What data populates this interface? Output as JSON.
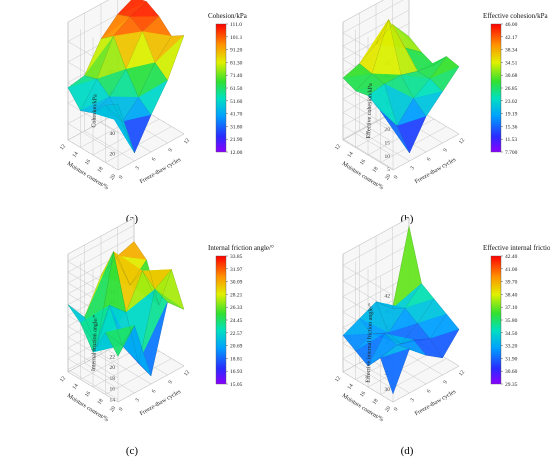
{
  "chart_data": [
    {
      "type": "surface",
      "panel": "(a)",
      "colorbar_title": "Cohesion/kPa",
      "zlabel": "Cohesion/kPa",
      "xlabel": "Moisture content/%",
      "ylabel": "Freeze-thaw cycles",
      "colorbar_ticks": [
        "111.0",
        "101.1",
        "91.20",
        "81.30",
        "71.40",
        "61.50",
        "51.60",
        "41.70",
        "31.80",
        "21.90",
        "12.00"
      ],
      "z_ticks": [
        "20",
        "40",
        "60",
        "80",
        "100"
      ],
      "x_ticks": [
        "12",
        "14",
        "16",
        "18",
        "20"
      ],
      "y_ticks": [
        "0",
        "3",
        "6",
        "9",
        "12"
      ],
      "zlim": [
        12,
        111
      ],
      "grid": [
        [
          55,
          58,
          85,
          100,
          108
        ],
        [
          40,
          62,
          95,
          105,
          111
        ],
        [
          45,
          52,
          70,
          98,
          104
        ],
        [
          60,
          35,
          50,
          75,
          92
        ],
        [
          68,
          12,
          40,
          65,
          100
        ]
      ]
    },
    {
      "type": "surface",
      "panel": "(b)",
      "colorbar_title": "Effective  cohesion/kPa",
      "zlabel": "Effective  cohesion/kPa",
      "xlabel": "Moisture content/%",
      "ylabel": "Freeze-thaw cycles",
      "colorbar_ticks": [
        "46.00",
        "42.17",
        "38.34",
        "34.51",
        "30.68",
        "26.85",
        "23.02",
        "19.19",
        "15.36",
        "11.53",
        "7.700"
      ],
      "z_ticks": [
        "5",
        "10",
        "15",
        "20",
        "25",
        "30",
        "35",
        "40",
        "45"
      ],
      "x_ticks": [
        "12",
        "14",
        "16",
        "18",
        "20"
      ],
      "y_ticks": [
        "0",
        "3",
        "6",
        "9",
        "12"
      ],
      "zlim": [
        7.7,
        46
      ],
      "grid": [
        [
          28,
          30,
          34,
          38,
          30
        ],
        [
          26,
          29,
          46,
          32,
          27
        ],
        [
          27,
          28,
          28,
          26,
          25
        ],
        [
          24,
          15,
          22,
          26,
          31
        ],
        [
          20,
          7.7,
          18,
          24,
          30
        ]
      ]
    },
    {
      "type": "surface",
      "panel": "(c)",
      "colorbar_title": "Internal friction angle/°",
      "zlabel": "Internal friction angle/°",
      "xlabel": "Moisture content/%",
      "ylabel": "Freeze-thaw cycles",
      "colorbar_ticks": [
        "33.85",
        "31.97",
        "30.09",
        "28.21",
        "26.33",
        "24.45",
        "22.57",
        "20.69",
        "18.81",
        "16.93",
        "15.05"
      ],
      "z_ticks": [
        "14",
        "16",
        "18",
        "20",
        "22",
        "24",
        "26",
        "28",
        "30",
        "32",
        "34"
      ],
      "x_ticks": [
        "12",
        "14",
        "16",
        "18",
        "20"
      ],
      "y_ticks": [
        "0",
        "3",
        "6",
        "9",
        "12"
      ],
      "zlim": [
        15.05,
        33.85
      ],
      "grid": [
        [
          26,
          22,
          28,
          30,
          31
        ],
        [
          24,
          18,
          33.85,
          26,
          29
        ],
        [
          20,
          27,
          24,
          30,
          22
        ],
        [
          25,
          21,
          16,
          28,
          30
        ],
        [
          22,
          26,
          15.05,
          27,
          24
        ]
      ]
    },
    {
      "type": "surface",
      "panel": "(d)",
      "colorbar_title": "Effective internal friction angle/°",
      "zlabel": "Effective internal friction angle/°",
      "xlabel": "Moisture content/%",
      "ylabel": "Freeze-thaw cycles",
      "colorbar_ticks": [
        "42.40",
        "41.00",
        "39.70",
        "38.40",
        "37.10",
        "35.80",
        "34.50",
        "33.20",
        "31.90",
        "30.60",
        "29.35"
      ],
      "z_ticks": [
        "28",
        "30",
        "32",
        "34",
        "36",
        "38",
        "40",
        "42"
      ],
      "x_ticks": [
        "12",
        "14",
        "16",
        "18",
        "20"
      ],
      "y_ticks": [
        "0",
        "3",
        "6",
        "9",
        "12"
      ],
      "zlim": [
        29.35,
        42.4
      ],
      "grid": [
        [
          33,
          34,
          35,
          33,
          42.4
        ],
        [
          32,
          33,
          32,
          34,
          36
        ],
        [
          31,
          34,
          31.5,
          33,
          35
        ],
        [
          33,
          33.5,
          33,
          32,
          34
        ],
        [
          29.35,
          34,
          32,
          30.5,
          33
        ]
      ]
    }
  ]
}
